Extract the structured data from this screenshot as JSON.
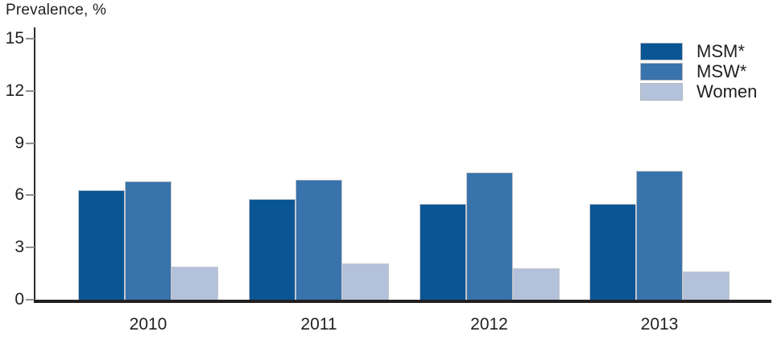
{
  "chart_data": {
    "type": "bar",
    "title": "Prevalence, %",
    "ylabel": "Prevalence, %",
    "xlabel": "",
    "categories": [
      "2010",
      "2011",
      "2012",
      "2013"
    ],
    "series": [
      {
        "name": "MSM*",
        "color": "#0a5694",
        "values": [
          6.3,
          5.8,
          5.5,
          5.5
        ]
      },
      {
        "name": "MSW*",
        "color": "#3873ab",
        "values": [
          6.8,
          6.9,
          7.3,
          7.4
        ]
      },
      {
        "name": "Women",
        "color": "#b4c1db",
        "values": [
          1.9,
          2.1,
          1.8,
          1.6
        ]
      }
    ],
    "yticks": [
      0,
      3,
      6,
      9,
      12,
      15
    ],
    "ylim": [
      0,
      15
    ],
    "grid": false,
    "legend_position": "top-right",
    "colors": {
      "axis": "#231f20",
      "tick": "#8d8f92",
      "text": "#231f20",
      "bar_border": "#c2c6ce",
      "background": "#ffffff"
    }
  }
}
